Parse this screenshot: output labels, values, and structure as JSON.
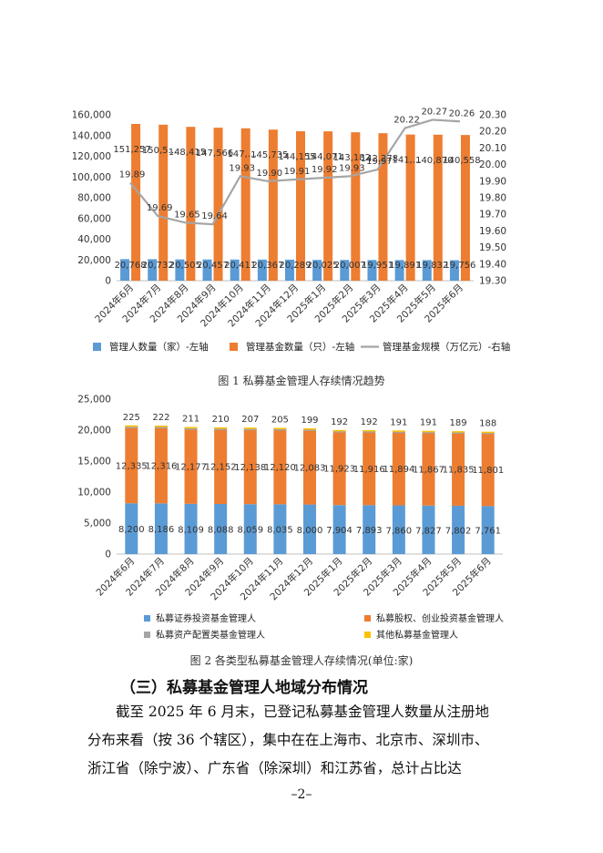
{
  "chart_data": [
    {
      "type": "bar",
      "title": "图 1  私募基金管理人存续情况趋势",
      "categories": [
        "2024年6月",
        "2024年7月",
        "2024年8月",
        "2024年9月",
        "2024年10月",
        "2024年11月",
        "2024年12月",
        "2025年1月",
        "2025年2月",
        "2025年3月",
        "2025年4月",
        "2025年5月",
        "2025年6月"
      ],
      "series": [
        {
          "name": "管理人数量（家）-左轴",
          "kind": "bar",
          "axis": "left",
          "color": "#5B9BD5",
          "values": [
            20768,
            20732,
            20505,
            20457,
            20411,
            20367,
            20289,
            20025,
            20007,
            19951,
            19891,
            19832,
            19756
          ],
          "labels": [
            "20,768",
            "20,732",
            "20,505",
            "20,457",
            "20,411",
            "20,367",
            "20,289",
            "20,025",
            "20,007",
            "19,951",
            "19,891",
            "19,832",
            "19,756"
          ]
        },
        {
          "name": "管理基金数量（只）-左轴",
          "kind": "bar",
          "axis": "left",
          "color": "#ED7D31",
          "values": [
            151257,
            150500,
            148415,
            147566,
            147000,
            145735,
            144155,
            144071,
            143182,
            142278,
            141000,
            140870,
            140558
          ],
          "labels": [
            "151,257",
            "150,5…",
            "148,415",
            "147,566",
            "147,…",
            "145,735",
            "144,155",
            "144,071",
            "143,182",
            "142,278",
            "141,…",
            "140,870",
            "140,558"
          ]
        },
        {
          "name": "管理基金规模（万亿元）-右轴",
          "kind": "line",
          "axis": "right",
          "color": "#A5A5A5",
          "values": [
            19.89,
            19.69,
            19.65,
            19.64,
            19.93,
            19.9,
            19.91,
            19.92,
            19.93,
            19.97,
            20.22,
            20.27,
            20.26
          ],
          "labels": [
            "19.89",
            "19.69",
            "19.65",
            "19.64",
            "19.93",
            "19.90",
            "19.91",
            "19.92",
            "19.93",
            "19.97",
            "20.22",
            "20.27",
            "20.26"
          ]
        }
      ],
      "ylim_left": [
        0,
        160000
      ],
      "yticks_left": [
        "0",
        "20,000",
        "40,000",
        "60,000",
        "80,000",
        "100,000",
        "120,000",
        "140,000",
        "160,000"
      ],
      "ylim_right": [
        19.3,
        20.3
      ],
      "yticks_right": [
        "19.30",
        "19.40",
        "19.50",
        "19.60",
        "19.70",
        "19.80",
        "19.90",
        "20.00",
        "20.10",
        "20.20",
        "20.30"
      ],
      "legend": [
        "管理人数量（家）-左轴",
        "管理基金数量（只）-左轴",
        "管理基金规模（万亿元）-右轴"
      ],
      "legend_position": "bottom"
    },
    {
      "type": "bar",
      "stacked": true,
      "title": "图 2  各类型私募基金管理人存续情况(单位:家)",
      "categories": [
        "2024年6月",
        "2024年7月",
        "2024年8月",
        "2024年9月",
        "2024年10月",
        "2024年11月",
        "2024年12月",
        "2025年1月",
        "2025年2月",
        "2025年3月",
        "2025年4月",
        "2025年5月",
        "2025年6月"
      ],
      "series": [
        {
          "name": "私募证券投资基金管理人",
          "color": "#5B9BD5",
          "values": [
            8200,
            8186,
            8109,
            8088,
            8059,
            8035,
            8000,
            7904,
            7893,
            7860,
            7827,
            7802,
            7761
          ],
          "labels": [
            "8,200",
            "8,186",
            "8,109",
            "8,088",
            "8,059",
            "8,035",
            "8,000",
            "7,904",
            "7,893",
            "7,860",
            "7,827",
            "7,802",
            "7,761"
          ]
        },
        {
          "name": "私募股权、创业投资基金管理人",
          "color": "#ED7D31",
          "values": [
            12335,
            12316,
            12177,
            12152,
            12138,
            12120,
            12083,
            11923,
            11916,
            11894,
            11867,
            11835,
            11801
          ],
          "labels": [
            "12,335",
            "12,316",
            "12,177",
            "12,152",
            "12,138",
            "12,120",
            "12,083",
            "11,923",
            "11,916",
            "11,894",
            "11,867",
            "11,835",
            "11,801"
          ]
        },
        {
          "name": "私募资产配置类基金管理人",
          "color": "#A5A5A5",
          "values": [
            8,
            8,
            8,
            7,
            7,
            7,
            7,
            6,
            6,
            6,
            6,
            6,
            6
          ],
          "labels": []
        },
        {
          "name": "其他私募基金管理人",
          "color": "#FFC000",
          "values": [
            225,
            222,
            211,
            210,
            207,
            205,
            199,
            192,
            192,
            191,
            191,
            189,
            188
          ],
          "labels": [
            "225",
            "222",
            "211",
            "210",
            "207",
            "205",
            "199",
            "192",
            "192",
            "191",
            "191",
            "189",
            "188"
          ]
        }
      ],
      "ylim": [
        0,
        25000
      ],
      "yticks": [
        "0",
        "5,000",
        "10,000",
        "15,000",
        "20,000",
        "25,000"
      ],
      "legend_position": "bottom"
    }
  ],
  "captions": {
    "fig1": "图 1  私募基金管理人存续情况趋势",
    "fig2": "图 2  各类型私募基金管理人存续情况(单位:家)"
  },
  "section": {
    "title": "（三）私募基金管理人地域分布情况",
    "lines": [
      "截至 2025 年 6 月末，已登记私募基金管理人数量从注册地",
      "分布来看（按 36 个辖区），集中在在上海市、北京市、深圳市、",
      "浙江省（除宁波）、广东省（除深圳）和江苏省，总计占比达"
    ]
  },
  "page_number": "–2–"
}
